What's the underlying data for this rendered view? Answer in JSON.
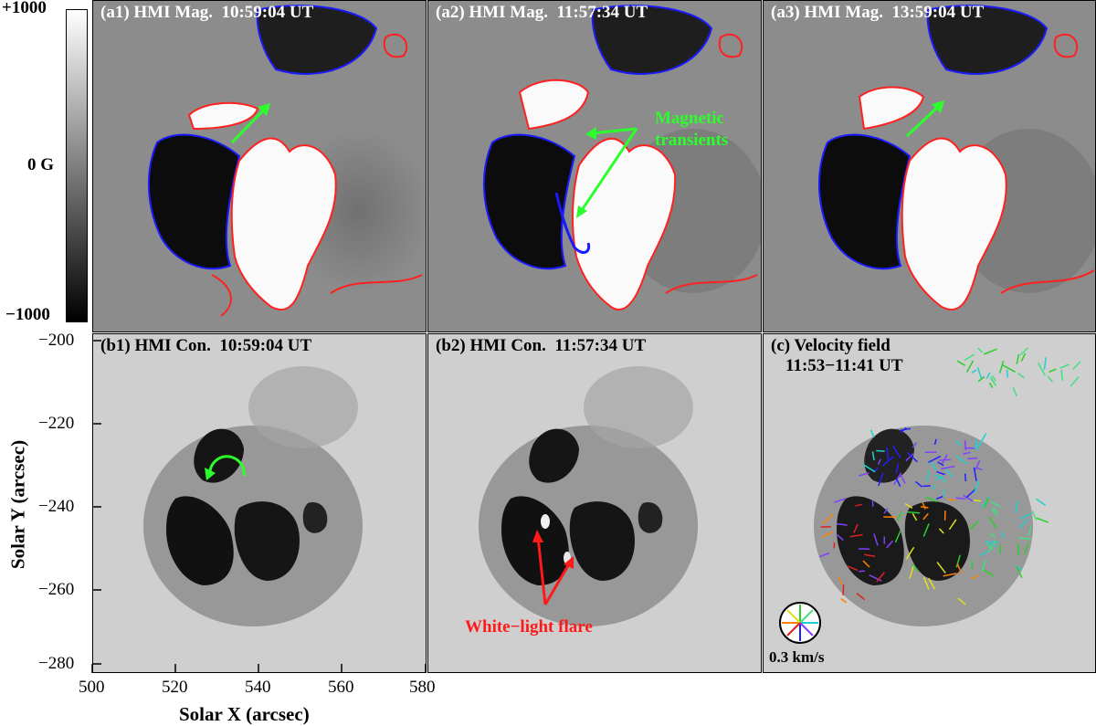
{
  "colorbar": {
    "max_label": "+1000",
    "mid_label": "0 G",
    "min_label": "−1000"
  },
  "panels": {
    "a1": {
      "title": "(a1) HMI Mag.  10:59:04 UT"
    },
    "a2": {
      "title": "(a2) HMI Mag.  11:57:34 UT"
    },
    "a3": {
      "title": "(a3) HMI Mag.  13:59:04 UT"
    },
    "b1": {
      "title": "(b1) HMI Con.  10:59:04 UT"
    },
    "b2": {
      "title": "(b2) HMI Con.  11:57:34 UT"
    },
    "c": {
      "title": "(c) Velocity field",
      "subtitle": "11:53−11:41 UT",
      "scale_label": "0.3 km/s"
    }
  },
  "annotations": {
    "magnetic_transients_line1": "Magnetic",
    "magnetic_transients_line2": "transients",
    "white_light_flare": "White−light flare"
  },
  "axes": {
    "x_title": "Solar X (arcsec)",
    "y_title": "Solar Y (arcsec)",
    "x_ticks": [
      "500",
      "520",
      "540",
      "560",
      "580"
    ],
    "y_ticks": [
      "−200",
      "−220",
      "−240",
      "−260",
      "−280"
    ]
  },
  "colors": {
    "positive_contour": "#ff2020",
    "negative_contour": "#1a1aff",
    "annotation_green": "#2bff2b",
    "annotation_red": "#ff1a1a"
  }
}
